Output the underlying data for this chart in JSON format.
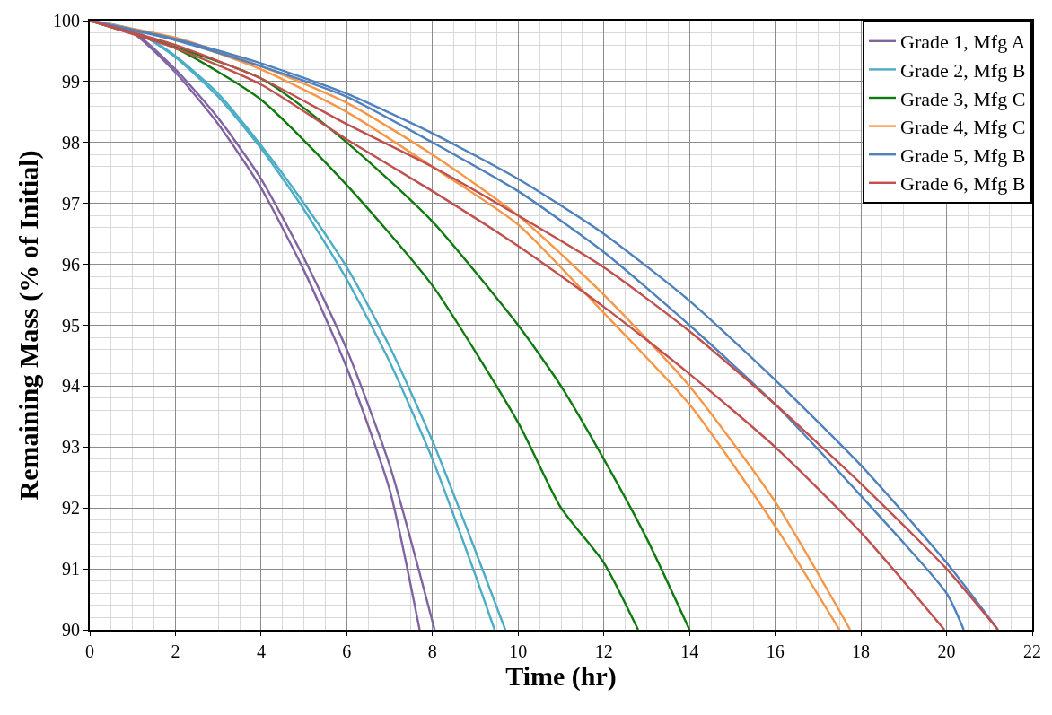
{
  "chart_data": {
    "type": "line",
    "xlabel": "Time (hr)",
    "ylabel": "Remaining Mass (% of Initial)",
    "xlim": [
      0,
      22
    ],
    "xticks": [
      0,
      2,
      4,
      6,
      8,
      10,
      12,
      14,
      16,
      18,
      20,
      22
    ],
    "ylim": [
      90,
      100
    ],
    "yticks": [
      90,
      91,
      92,
      93,
      94,
      95,
      96,
      97,
      98,
      99,
      100
    ],
    "grid": true,
    "legend": "top right",
    "series": [
      {
        "name": "Grade 1, Mfg A",
        "color": "#8064a2",
        "x": [
          0,
          1,
          2,
          3,
          4,
          5,
          6,
          7,
          7.7
        ],
        "values": [
          100,
          99.8,
          99.15,
          98.3,
          97.25,
          95.9,
          94.3,
          92.3,
          90
        ]
      },
      {
        "color": "#8064a2",
        "x": [
          0,
          1,
          2,
          3,
          4,
          5,
          6,
          7,
          8.05
        ],
        "values": [
          100,
          99.82,
          99.2,
          98.4,
          97.4,
          96.1,
          94.6,
          92.7,
          90
        ]
      },
      {
        "name": "Grade 2, Mfg B",
        "color": "#4bacc6",
        "x": [
          0,
          1,
          2,
          3,
          4,
          5,
          6,
          7,
          8,
          9,
          9.45
        ],
        "values": [
          100,
          99.85,
          99.4,
          98.75,
          97.9,
          96.9,
          95.75,
          94.4,
          92.8,
          90.9,
          90
        ]
      },
      {
        "color": "#4bacc6",
        "x": [
          0,
          1,
          2,
          3,
          4,
          5,
          6,
          7,
          8,
          9,
          9.7
        ],
        "values": [
          100,
          99.86,
          99.42,
          98.8,
          97.95,
          97.0,
          95.95,
          94.65,
          93.1,
          91.3,
          90
        ]
      },
      {
        "name": "Grade 3, Mfg C",
        "color": "#0f7a0f",
        "x": [
          0,
          2,
          4,
          6,
          8,
          10,
          11,
          12,
          12.8
        ],
        "values": [
          100,
          99.55,
          98.7,
          97.3,
          95.65,
          93.4,
          92.0,
          91.1,
          90
        ]
      },
      {
        "color": "#0f7a0f",
        "x": [
          0,
          4,
          6,
          8,
          10,
          11,
          12,
          13,
          14
        ],
        "values": [
          100,
          99.05,
          98.0,
          96.7,
          95.0,
          94.0,
          92.8,
          91.5,
          90
        ]
      },
      {
        "name": "Grade 4, Mfg C",
        "color": "#f79646",
        "x": [
          0,
          2,
          4,
          6,
          8,
          10,
          12,
          14,
          16,
          17.5
        ],
        "values": [
          100,
          99.7,
          99.2,
          98.5,
          97.6,
          96.65,
          95.2,
          93.7,
          91.7,
          90
        ]
      },
      {
        "color": "#f79646",
        "x": [
          0,
          2,
          4,
          6,
          8,
          10,
          12,
          14,
          16,
          17.75
        ],
        "values": [
          100,
          99.72,
          99.25,
          98.65,
          97.8,
          96.8,
          95.5,
          94.0,
          92.1,
          90
        ]
      },
      {
        "name": "Grade 5, Mfg B",
        "color": "#4f81bd",
        "x": [
          0,
          2,
          4,
          6,
          8,
          10,
          12,
          14,
          16,
          18,
          20,
          20.4
        ],
        "values": [
          100,
          99.68,
          99.25,
          98.75,
          98.0,
          97.2,
          96.2,
          95.0,
          93.7,
          92.2,
          90.6,
          90
        ]
      },
      {
        "color": "#4f81bd",
        "x": [
          0,
          2,
          4,
          6,
          8,
          10,
          12,
          14,
          16,
          18,
          20,
          21.2
        ],
        "values": [
          100,
          99.7,
          99.3,
          98.8,
          98.15,
          97.4,
          96.5,
          95.4,
          94.1,
          92.7,
          91.1,
          90
        ]
      },
      {
        "name": "Grade 6, Mfg B",
        "color": "#c0504d",
        "x": [
          0,
          2,
          4,
          6,
          8,
          10,
          12,
          14,
          16,
          18,
          19.95
        ],
        "values": [
          100,
          99.55,
          98.95,
          98.05,
          97.2,
          96.3,
          95.3,
          94.2,
          93.0,
          91.6,
          90
        ]
      },
      {
        "color": "#c0504d",
        "x": [
          0,
          2,
          4,
          6,
          8,
          10,
          12,
          14,
          16,
          18,
          20,
          21.2
        ],
        "values": [
          100,
          99.6,
          99.05,
          98.3,
          97.6,
          96.8,
          95.95,
          94.9,
          93.7,
          92.4,
          91.0,
          90
        ]
      }
    ]
  }
}
